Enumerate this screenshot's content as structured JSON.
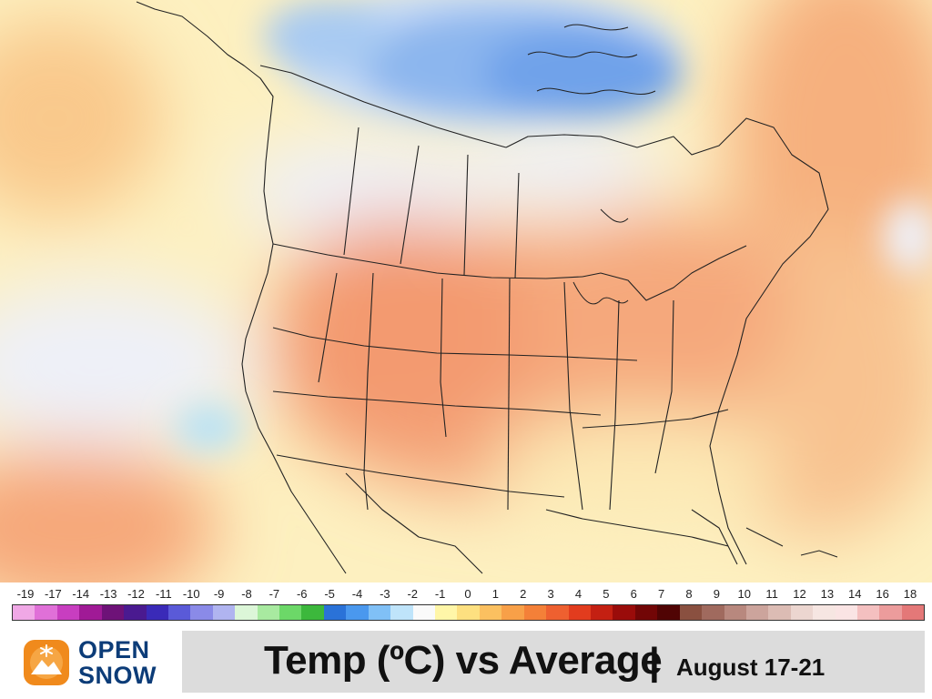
{
  "map": {
    "title_main": "Temp (ºC) vs Average",
    "title_separator": "|",
    "title_date": "August 17-21",
    "brand_line1": "OPEN",
    "brand_line2": "SNOW",
    "logo_icon": "snowflake-mountain-icon",
    "colors": {
      "brand_orange": "#f08a1c",
      "brand_navy": "#0c3c78",
      "ocean_base": "#fdf0c0",
      "cold_blue": "#6fa6ec",
      "warm_orange": "#f4a06c"
    }
  },
  "legend": {
    "labels": [
      "-19",
      "-17",
      "-14",
      "-13",
      "-12",
      "-11",
      "-10",
      "-9",
      "-8",
      "-7",
      "-6",
      "-5",
      "-4",
      "-3",
      "-2",
      "-1",
      "0",
      "1",
      "2",
      "3",
      "4",
      "5",
      "6",
      "7",
      "8",
      "9",
      "10",
      "11",
      "12",
      "13",
      "14",
      "16",
      "18"
    ],
    "colors": [
      "#f0a8e6",
      "#e070d8",
      "#c83ec0",
      "#a01a96",
      "#6e1278",
      "#4a1a90",
      "#3a2ab8",
      "#5a5ad8",
      "#8a8ae8",
      "#b0b4f0",
      "#dcf6d8",
      "#a8eaa0",
      "#6cd868",
      "#3cb83c",
      "#2a72d8",
      "#4a98ee",
      "#80c0f6",
      "#bfe4fa",
      "#fafafa",
      "#fff6a8",
      "#fde080",
      "#fbc060",
      "#f8a048",
      "#f48038",
      "#ee6030",
      "#e23c1e",
      "#c42012",
      "#9a0c0a",
      "#720606",
      "#500404",
      "#8a5040",
      "#a06a5e",
      "#b8887e",
      "#cca49c",
      "#dcbcb4",
      "#ecd6d0",
      "#f6e6e2",
      "#fae4e4",
      "#f4c0c0",
      "#ec9c9c",
      "#e47878"
    ]
  }
}
